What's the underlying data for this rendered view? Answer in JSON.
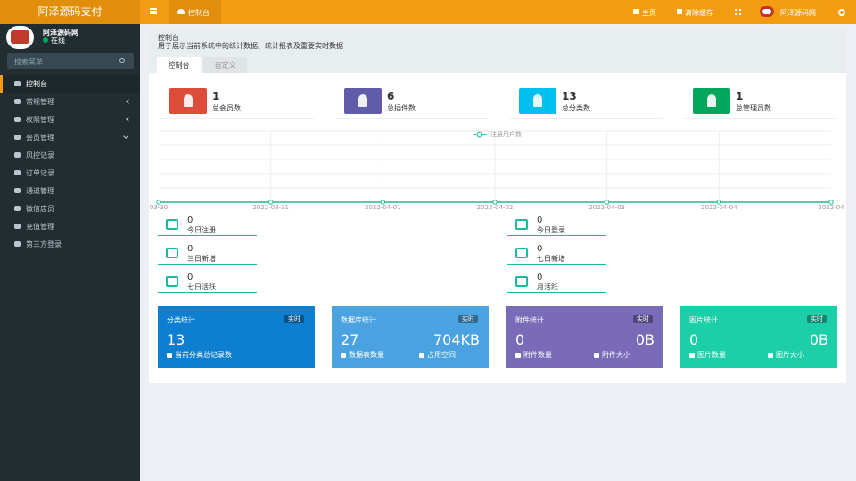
{
  "topbar": {
    "logo": "阿泽源码支付",
    "tab": "控制台",
    "links": [
      "主页",
      "清除缓存"
    ],
    "user": "阿泽源码网"
  },
  "sidebar": {
    "user": {
      "name": "阿泽源码网",
      "status": "在线"
    },
    "search_placeholder": "搜索菜单",
    "menu": [
      {
        "label": "控制台"
      },
      {
        "label": "常规管理",
        "arrow": "left"
      },
      {
        "label": "权限管理",
        "arrow": "left"
      },
      {
        "label": "会员管理",
        "arrow": "down"
      },
      {
        "label": "风控记录"
      },
      {
        "label": "订单记录"
      },
      {
        "label": "通道管理"
      },
      {
        "label": "微信店员"
      },
      {
        "label": "充值管理"
      },
      {
        "label": "第三方登录"
      }
    ]
  },
  "page_header": {
    "title": "控制台",
    "subtitle": "用于展示当前系统中的统计数据、统计报表及重要实时数据"
  },
  "tabs": [
    "控制台",
    "自定义"
  ],
  "stats": [
    {
      "value": 1,
      "label": "总会员数",
      "color": "#dd4b39"
    },
    {
      "value": 6,
      "label": "总插件数",
      "color": "#605ca8"
    },
    {
      "value": 13,
      "label": "总分类数",
      "color": "#00c0ef"
    },
    {
      "value": 1,
      "label": "总管理员数",
      "color": "#00a65a"
    }
  ],
  "chart_data": {
    "type": "line",
    "x": [
      "03-30",
      "2022-03-31",
      "2022-04-01",
      "2022-04-02",
      "2022-04-03",
      "2022-04-04",
      "2022-04"
    ],
    "series": [
      {
        "name": "注册用户数",
        "color": "#18bc9c",
        "values": [
          0,
          0,
          0,
          0,
          0,
          0,
          0
        ]
      }
    ],
    "ylim": [
      0,
      1
    ],
    "yticks": [
      0,
      0.2,
      0.4,
      0.6,
      0.8,
      1
    ],
    "grid": true
  },
  "small_stats": [
    {
      "value": 0,
      "label": "今日注册"
    },
    {
      "value": 0,
      "label": "今日登录"
    },
    {
      "value": 0,
      "label": "三日新增"
    },
    {
      "value": 0,
      "label": "七日新增"
    },
    {
      "value": 0,
      "label": "七日活跃"
    },
    {
      "value": 0,
      "label": "月活跃"
    }
  ],
  "cards": [
    {
      "title": "分类统计",
      "badge": "实时",
      "color": "#0e7fd0",
      "items": [
        {
          "value": 13,
          "label": "当前分类总记录数"
        }
      ]
    },
    {
      "title": "数据库统计",
      "badge": "实时",
      "color": "#4aa3e0",
      "items": [
        {
          "value": 27,
          "label": "数据表数量"
        },
        {
          "value": "704KB",
          "label": "占用空间"
        }
      ]
    },
    {
      "title": "附件统计",
      "badge": "实时",
      "color": "#7a6bb8",
      "items": [
        {
          "value": 0,
          "label": "附件数量"
        },
        {
          "value": "0B",
          "label": "附件大小"
        }
      ]
    },
    {
      "title": "图片统计",
      "badge": "实时",
      "color": "#1ccfa8",
      "items": [
        {
          "value": 0,
          "label": "图片数量"
        },
        {
          "value": "0B",
          "label": "图片大小"
        }
      ]
    }
  ]
}
